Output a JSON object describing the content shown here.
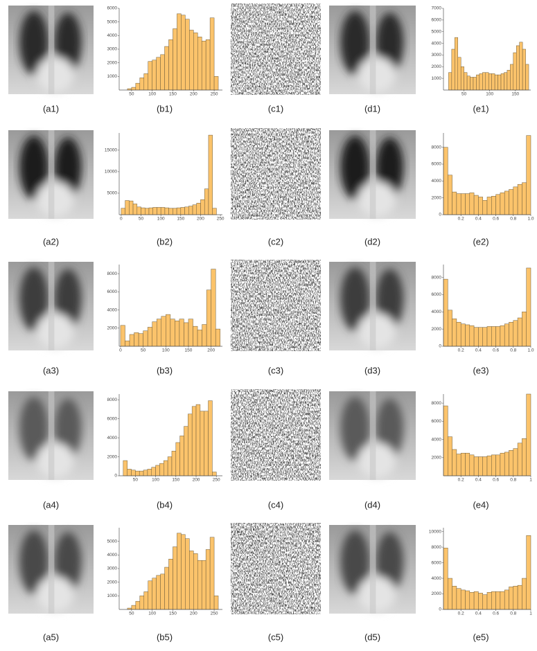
{
  "captions": [
    [
      "(a1)",
      "(b1)",
      "(c1)",
      "(d1)",
      "(e1)"
    ],
    [
      "(a2)",
      "(b2)",
      "(c2)",
      "(d2)",
      "(e2)"
    ],
    [
      "(a3)",
      "(b3)",
      "(c3)",
      "(d3)",
      "(e3)"
    ],
    [
      "(a4)",
      "(b4)",
      "(c4)",
      "(d4)",
      "(e4)"
    ],
    [
      "(a5)",
      "(b5)",
      "(c5)",
      "(d5)",
      "(e5)"
    ]
  ],
  "chart_data": [
    {
      "type": "histogram",
      "color": "#fbc36b",
      "bins": [
        40,
        50,
        60,
        70,
        80,
        90,
        100,
        110,
        120,
        130,
        140,
        150,
        160,
        170,
        180,
        190,
        200,
        210,
        220,
        230,
        240,
        250,
        260
      ],
      "counts": [
        100,
        200,
        500,
        900,
        1200,
        2100,
        2200,
        2400,
        2600,
        3200,
        3700,
        4500,
        5600,
        5500,
        5200,
        4400,
        4200,
        3900,
        3600,
        3700,
        5300,
        1000
      ],
      "xlim": [
        20,
        270
      ],
      "ylim": [
        0,
        6000
      ],
      "xticks": [
        50,
        100,
        150,
        200,
        250
      ],
      "yticks": [
        1000,
        2000,
        3000,
        4000,
        5000,
        6000
      ]
    },
    {
      "type": "histogram",
      "color": "#fbc36b",
      "bins": [
        20,
        26,
        32,
        38,
        44,
        50,
        56,
        62,
        68,
        74,
        80,
        86,
        92,
        98,
        104,
        110,
        116,
        122,
        128,
        134,
        140,
        146,
        152,
        158,
        164,
        170,
        176
      ],
      "counts": [
        1500,
        3500,
        4500,
        2800,
        2000,
        1500,
        1200,
        1100,
        1100,
        1300,
        1400,
        1500,
        1500,
        1400,
        1400,
        1300,
        1300,
        1400,
        1500,
        1700,
        2200,
        3200,
        3800,
        4100,
        3500,
        2200
      ],
      "xlim": [
        10,
        180
      ],
      "ylim": [
        0,
        7000
      ],
      "xticks": [
        50,
        100,
        150
      ],
      "yticks": [
        1000,
        2000,
        3000,
        4000,
        5000,
        6000,
        7000
      ]
    },
    {
      "type": "histogram",
      "color": "#fbc36b",
      "bins": [
        0,
        10,
        20,
        30,
        40,
        50,
        60,
        70,
        80,
        90,
        100,
        110,
        120,
        130,
        140,
        150,
        160,
        170,
        180,
        190,
        200,
        210,
        220,
        230,
        240
      ],
      "counts": [
        1500,
        3300,
        3200,
        2500,
        1800,
        1600,
        1500,
        1600,
        1700,
        1700,
        1700,
        1600,
        1500,
        1500,
        1600,
        1700,
        1800,
        2000,
        2300,
        2700,
        3500,
        6000,
        18500,
        1500
      ],
      "xlim": [
        -5,
        255
      ],
      "ylim": [
        0,
        19000
      ],
      "xticks": [
        0,
        50,
        100,
        150,
        200,
        250
      ],
      "yticks": [
        5000,
        10000,
        15000
      ]
    },
    {
      "type": "histogram",
      "color": "#fbc36b",
      "bins": [
        0,
        0.05,
        0.1,
        0.15,
        0.2,
        0.25,
        0.3,
        0.35,
        0.4,
        0.45,
        0.5,
        0.55,
        0.6,
        0.65,
        0.7,
        0.75,
        0.8,
        0.85,
        0.9,
        0.95,
        1
      ],
      "counts": [
        8000,
        4700,
        2700,
        2500,
        2500,
        2500,
        2600,
        2300,
        2100,
        1700,
        2100,
        2200,
        2400,
        2600,
        2800,
        3000,
        3300,
        3600,
        3800,
        9400
      ],
      "xlim": [
        0,
        1
      ],
      "ylim": [
        0,
        9700
      ],
      "xticks": [
        0.2,
        0.4,
        0.6,
        0.8,
        {
          "value": 1,
          "label": "1.0"
        }
      ],
      "yticks": [
        0,
        2000,
        4000,
        6000,
        8000
      ]
    },
    {
      "type": "histogram",
      "color": "#fbc36b",
      "bins": [
        0,
        10,
        20,
        30,
        40,
        50,
        60,
        70,
        80,
        90,
        100,
        110,
        120,
        130,
        140,
        150,
        160,
        170,
        180,
        190,
        200,
        210,
        220
      ],
      "counts": [
        2300,
        600,
        1300,
        1500,
        1400,
        1700,
        2100,
        2700,
        3000,
        3300,
        3500,
        3000,
        2800,
        3000,
        2600,
        3000,
        2200,
        1800,
        2400,
        6200,
        8500,
        1900
      ],
      "xlim": [
        -3,
        225
      ],
      "ylim": [
        0,
        9000
      ],
      "xticks": [
        0,
        50,
        100,
        150,
        200
      ],
      "yticks": [
        2000,
        4000,
        6000,
        8000
      ]
    },
    {
      "type": "histogram",
      "color": "#fbc36b",
      "bins": [
        0,
        0.05,
        0.1,
        0.15,
        0.2,
        0.25,
        0.3,
        0.35,
        0.4,
        0.45,
        0.5,
        0.55,
        0.6,
        0.65,
        0.7,
        0.75,
        0.8,
        0.85,
        0.9,
        0.95,
        1
      ],
      "counts": [
        7800,
        4200,
        3200,
        2800,
        2600,
        2500,
        2400,
        2200,
        2200,
        2200,
        2300,
        2300,
        2300,
        2400,
        2600,
        2800,
        3000,
        3300,
        4000,
        9100
      ],
      "xlim": [
        0,
        1
      ],
      "ylim": [
        0,
        9500
      ],
      "xticks": [
        0.2,
        0.4,
        0.6,
        0.8,
        {
          "value": 1,
          "label": "1.0"
        }
      ],
      "yticks": [
        0,
        2000,
        4000,
        6000,
        8000
      ]
    },
    {
      "type": "histogram",
      "color": "#fbc36b",
      "bins": [
        20,
        30,
        40,
        50,
        60,
        70,
        80,
        90,
        100,
        110,
        120,
        130,
        140,
        150,
        160,
        170,
        180,
        190,
        200,
        210,
        220,
        230,
        240,
        250
      ],
      "counts": [
        1600,
        700,
        600,
        500,
        500,
        600,
        700,
        900,
        1100,
        1300,
        1600,
        2000,
        2600,
        3500,
        4200,
        5200,
        6500,
        7300,
        7500,
        6800,
        6800,
        7900,
        400
      ],
      "xlim": [
        10,
        265
      ],
      "ylim": [
        0,
        8600
      ],
      "xticks": [
        50,
        100,
        150,
        200,
        250
      ],
      "yticks": [
        0,
        2000,
        4000,
        6000,
        8000
      ]
    },
    {
      "type": "histogram",
      "color": "#fbc36b",
      "bins": [
        0,
        0.05,
        0.1,
        0.15,
        0.2,
        0.25,
        0.3,
        0.35,
        0.4,
        0.45,
        0.5,
        0.55,
        0.6,
        0.65,
        0.7,
        0.75,
        0.8,
        0.85,
        0.9,
        0.95,
        1
      ],
      "counts": [
        7700,
        4300,
        2900,
        2400,
        2500,
        2500,
        2300,
        2100,
        2100,
        2100,
        2200,
        2300,
        2300,
        2500,
        2600,
        2800,
        3000,
        3600,
        4100,
        9000
      ],
      "xlim": [
        0,
        1
      ],
      "ylim": [
        0,
        9000
      ],
      "xticks": [
        0.2,
        0.4,
        0.6,
        0.8,
        1
      ],
      "yticks": [
        2000,
        4000,
        6000,
        8000
      ]
    },
    {
      "type": "histogram",
      "color": "#fbc36b",
      "bins": [
        40,
        50,
        60,
        70,
        80,
        90,
        100,
        110,
        120,
        130,
        140,
        150,
        160,
        170,
        180,
        190,
        200,
        210,
        220,
        230,
        240,
        250,
        260
      ],
      "counts": [
        100,
        300,
        600,
        1000,
        1300,
        2100,
        2300,
        2500,
        2600,
        3100,
        3700,
        4600,
        5600,
        5500,
        5200,
        4300,
        4100,
        3600,
        3600,
        4400,
        5300,
        1000
      ],
      "xlim": [
        20,
        270
      ],
      "ylim": [
        0,
        6000
      ],
      "xticks": [
        50,
        100,
        150,
        200,
        250
      ],
      "yticks": [
        1000,
        2000,
        3000,
        4000,
        5000
      ]
    },
    {
      "type": "histogram",
      "color": "#fbc36b",
      "bins": [
        0,
        0.05,
        0.1,
        0.15,
        0.2,
        0.25,
        0.3,
        0.35,
        0.4,
        0.45,
        0.5,
        0.55,
        0.6,
        0.65,
        0.7,
        0.75,
        0.8,
        0.85,
        0.9,
        0.95,
        1
      ],
      "counts": [
        7900,
        4000,
        3000,
        2700,
        2500,
        2400,
        2200,
        2300,
        2100,
        1900,
        2200,
        2300,
        2300,
        2300,
        2500,
        2900,
        3000,
        3100,
        4000,
        9500
      ],
      "xlim": [
        0,
        1
      ],
      "ylim": [
        0,
        10500
      ],
      "xticks": [
        0.2,
        0.4,
        0.6,
        0.8,
        1
      ],
      "yticks": [
        0,
        2000,
        4000,
        6000,
        8000,
        10000
      ]
    }
  ]
}
